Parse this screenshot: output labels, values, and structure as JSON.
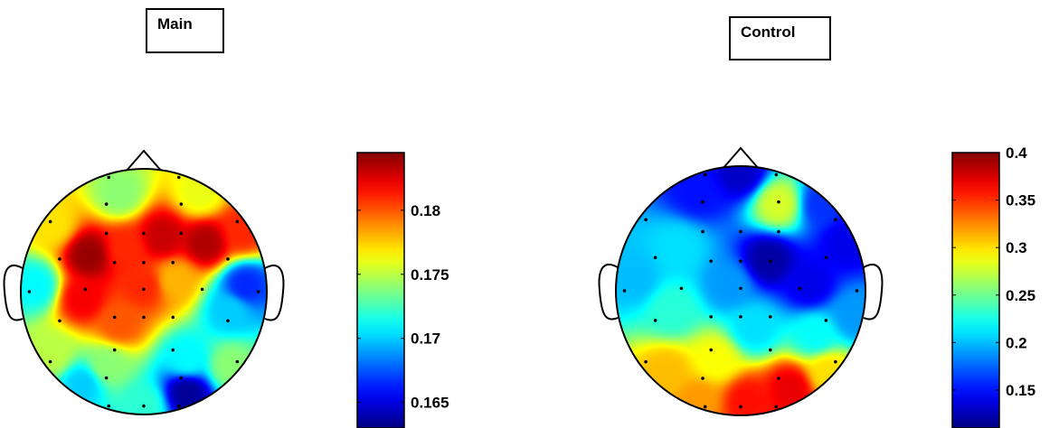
{
  "chart_data": [
    {
      "type": "heatmap",
      "subtype": "scalp-topography",
      "title": "Main",
      "colormap": "jet",
      "colorbar": {
        "ticks": [
          0.165,
          0.17,
          0.175,
          0.18
        ],
        "tick_labels": [
          "0.165",
          "0.17",
          "0.175",
          "0.18"
        ],
        "range": [
          0.163,
          0.1845
        ]
      },
      "sources": [
        {
          "x": -0.45,
          "y": 0.3,
          "v": 0.184
        },
        {
          "x": -0.15,
          "y": 0.35,
          "v": 0.181
        },
        {
          "x": 0.15,
          "y": 0.45,
          "v": 0.183
        },
        {
          "x": 0.5,
          "y": 0.4,
          "v": 0.1835
        },
        {
          "x": -0.5,
          "y": -0.05,
          "v": 0.182
        },
        {
          "x": 0.0,
          "y": 0.05,
          "v": 0.181
        },
        {
          "x": -0.2,
          "y": -0.25,
          "v": 0.18
        },
        {
          "x": 0.25,
          "y": 0.1,
          "v": 0.178
        },
        {
          "x": -0.2,
          "y": 0.8,
          "v": 0.174
        },
        {
          "x": 0.45,
          "y": 0.8,
          "v": 0.176
        },
        {
          "x": 0.8,
          "y": 0.5,
          "v": 0.181
        },
        {
          "x": 0.7,
          "y": -0.15,
          "v": 0.17
        },
        {
          "x": 0.82,
          "y": 0.05,
          "v": 0.1665
        },
        {
          "x": -0.88,
          "y": 0.05,
          "v": 0.171
        },
        {
          "x": -0.3,
          "y": -0.6,
          "v": 0.174
        },
        {
          "x": 0.35,
          "y": -0.55,
          "v": 0.171
        },
        {
          "x": 0.35,
          "y": -0.82,
          "v": 0.1635
        },
        {
          "x": -0.5,
          "y": -0.75,
          "v": 0.17
        },
        {
          "x": -0.75,
          "y": -0.5,
          "v": 0.175
        },
        {
          "x": 0.0,
          "y": -0.92,
          "v": 0.172
        },
        {
          "x": 0.7,
          "y": -0.6,
          "v": 0.174
        },
        {
          "x": -0.75,
          "y": 0.55,
          "v": 0.177
        }
      ]
    },
    {
      "type": "heatmap",
      "subtype": "scalp-topography",
      "title": "Control",
      "colormap": "jet",
      "colorbar": {
        "ticks": [
          0.15,
          0.2,
          0.25,
          0.3,
          0.35,
          0.4
        ],
        "tick_labels": [
          "0.15",
          "0.2",
          "0.25",
          "0.3",
          "0.35",
          "0.4"
        ],
        "range": [
          0.11,
          0.4
        ]
      },
      "sources": [
        {
          "x": 0.0,
          "y": 0.95,
          "v": 0.13
        },
        {
          "x": -0.35,
          "y": 0.8,
          "v": 0.15
        },
        {
          "x": 0.3,
          "y": 0.7,
          "v": 0.28
        },
        {
          "x": 0.65,
          "y": 0.7,
          "v": 0.16
        },
        {
          "x": 0.85,
          "y": 0.4,
          "v": 0.14
        },
        {
          "x": 0.22,
          "y": 0.25,
          "v": 0.12
        },
        {
          "x": 0.55,
          "y": 0.05,
          "v": 0.14
        },
        {
          "x": -0.1,
          "y": 0.05,
          "v": 0.19
        },
        {
          "x": -0.5,
          "y": 0.35,
          "v": 0.21
        },
        {
          "x": -0.85,
          "y": 0.1,
          "v": 0.2
        },
        {
          "x": -0.55,
          "y": -0.15,
          "v": 0.23
        },
        {
          "x": 0.1,
          "y": -0.3,
          "v": 0.21
        },
        {
          "x": 0.6,
          "y": -0.35,
          "v": 0.22
        },
        {
          "x": 0.9,
          "y": -0.2,
          "v": 0.19
        },
        {
          "x": -0.6,
          "y": -0.65,
          "v": 0.31
        },
        {
          "x": -0.2,
          "y": -0.55,
          "v": 0.29
        },
        {
          "x": 0.05,
          "y": -0.88,
          "v": 0.36
        },
        {
          "x": 0.4,
          "y": -0.78,
          "v": 0.37
        },
        {
          "x": 0.7,
          "y": -0.65,
          "v": 0.3
        },
        {
          "x": -0.35,
          "y": -0.88,
          "v": 0.32
        }
      ]
    }
  ]
}
